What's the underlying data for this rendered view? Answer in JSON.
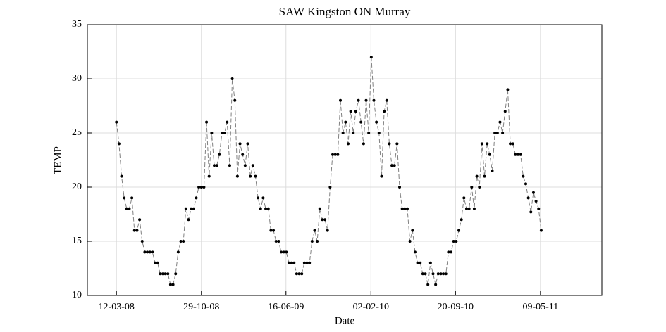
{
  "chart_data": {
    "type": "line",
    "title": "SAW Kingston ON Murray",
    "xlabel": "Date",
    "ylabel": "TEMP",
    "x": [
      "2008-03-12",
      "2008-03-19",
      "2008-03-26",
      "2008-04-02",
      "2008-04-09",
      "2008-04-16",
      "2008-04-23",
      "2008-04-30",
      "2008-05-07",
      "2008-05-14",
      "2008-05-21",
      "2008-05-28",
      "2008-06-04",
      "2008-06-11",
      "2008-06-18",
      "2008-06-25",
      "2008-07-02",
      "2008-07-09",
      "2008-07-16",
      "2008-07-23",
      "2008-07-30",
      "2008-08-06",
      "2008-08-13",
      "2008-08-20",
      "2008-08-27",
      "2008-09-03",
      "2008-09-10",
      "2008-09-17",
      "2008-09-24",
      "2008-10-01",
      "2008-10-08",
      "2008-10-15",
      "2008-10-22",
      "2008-10-29",
      "2008-11-05",
      "2008-11-12",
      "2008-11-19",
      "2008-11-26",
      "2008-12-03",
      "2008-12-10",
      "2008-12-17",
      "2008-12-24",
      "2008-12-31",
      "2009-01-07",
      "2009-01-14",
      "2009-01-21",
      "2009-01-28",
      "2009-02-04",
      "2009-02-11",
      "2009-02-18",
      "2009-02-25",
      "2009-03-04",
      "2009-03-11",
      "2009-03-18",
      "2009-03-25",
      "2009-04-01",
      "2009-04-08",
      "2009-04-15",
      "2009-04-22",
      "2009-04-29",
      "2009-05-06",
      "2009-05-13",
      "2009-05-20",
      "2009-05-27",
      "2009-06-03",
      "2009-06-10",
      "2009-06-17",
      "2009-06-24",
      "2009-07-01",
      "2009-07-08",
      "2009-07-15",
      "2009-07-22",
      "2009-07-29",
      "2009-08-05",
      "2009-08-12",
      "2009-08-19",
      "2009-08-26",
      "2009-09-02",
      "2009-09-09",
      "2009-09-16",
      "2009-09-23",
      "2009-09-30",
      "2009-10-07",
      "2009-10-14",
      "2009-10-21",
      "2009-10-28",
      "2009-11-04",
      "2009-11-11",
      "2009-11-18",
      "2009-11-25",
      "2009-12-02",
      "2009-12-09",
      "2009-12-16",
      "2009-12-23",
      "2009-12-30",
      "2010-01-06",
      "2010-01-13",
      "2010-01-20",
      "2010-01-27",
      "2010-02-03",
      "2010-02-10",
      "2010-02-17",
      "2010-02-24",
      "2010-03-03",
      "2010-03-10",
      "2010-03-17",
      "2010-03-24",
      "2010-03-31",
      "2010-04-07",
      "2010-04-14",
      "2010-04-21",
      "2010-04-28",
      "2010-05-05",
      "2010-05-12",
      "2010-05-19",
      "2010-05-26",
      "2010-06-02",
      "2010-06-09",
      "2010-06-16",
      "2010-06-23",
      "2010-06-30",
      "2010-07-07",
      "2010-07-14",
      "2010-07-21",
      "2010-07-28",
      "2010-08-04",
      "2010-08-11",
      "2010-08-18",
      "2010-08-25",
      "2010-09-01",
      "2010-09-08",
      "2010-09-15",
      "2010-09-22",
      "2010-09-29",
      "2010-10-06",
      "2010-10-13",
      "2010-10-20",
      "2010-10-27",
      "2010-11-03",
      "2010-11-10",
      "2010-11-17",
      "2010-11-24",
      "2010-12-01",
      "2010-12-08",
      "2010-12-15",
      "2010-12-22",
      "2010-12-29",
      "2011-01-05",
      "2011-01-12",
      "2011-01-19",
      "2011-01-26",
      "2011-02-02",
      "2011-02-09",
      "2011-02-16",
      "2011-02-23",
      "2011-03-02",
      "2011-03-09",
      "2011-03-16",
      "2011-03-23",
      "2011-03-30",
      "2011-04-06",
      "2011-04-13",
      "2011-04-20",
      "2011-04-27",
      "2011-05-04",
      "2011-05-11"
    ],
    "values": [
      26,
      24,
      21,
      19,
      18,
      18,
      19,
      16,
      16,
      17,
      15,
      14,
      14,
      14,
      14,
      13,
      13,
      12,
      12,
      12,
      12,
      11,
      11,
      12,
      14,
      15,
      15,
      18,
      17,
      18,
      18,
      19,
      20,
      20,
      20,
      26,
      21,
      25,
      22,
      22,
      23,
      25,
      25,
      26,
      22,
      30,
      28,
      21,
      24,
      23,
      22,
      24,
      21,
      22,
      21,
      19,
      18,
      19,
      18,
      18,
      16,
      16,
      15,
      15,
      14,
      14,
      14,
      13,
      13,
      13,
      12,
      12,
      12,
      13,
      13,
      13,
      15,
      16,
      15,
      18,
      17,
      17,
      16,
      20,
      23,
      23,
      23,
      28,
      25,
      26,
      24,
      27,
      25,
      27,
      28,
      26,
      24,
      28,
      25,
      32,
      28,
      26,
      25,
      21,
      27,
      28,
      24,
      22,
      22,
      24,
      20,
      18,
      18,
      18,
      15,
      16,
      14,
      13,
      13,
      12,
      12,
      11,
      13,
      12,
      11,
      12,
      12,
      12,
      12,
      14,
      14,
      15,
      15,
      16,
      17,
      19,
      18,
      18,
      20,
      18,
      21,
      20,
      24,
      21,
      24,
      23,
      21.5,
      25,
      25,
      26,
      25,
      27,
      29,
      24,
      24,
      23,
      23,
      23,
      21,
      20.3,
      19,
      17.7,
      19.5,
      18.7,
      18,
      16
    ],
    "color": "#808080",
    "marker_color": "#000000",
    "xlim": [
      "2007-12-24",
      "2011-10-23"
    ],
    "xticks": [
      {
        "value": "2008-03-12",
        "label": "12-03-08"
      },
      {
        "value": "2008-10-29",
        "label": "29-10-08"
      },
      {
        "value": "2009-06-16",
        "label": "16-06-09"
      },
      {
        "value": "2010-02-02",
        "label": "02-02-10"
      },
      {
        "value": "2010-09-20",
        "label": "20-09-10"
      },
      {
        "value": "2011-05-09",
        "label": "09-05-11"
      }
    ],
    "ylim": [
      10,
      35
    ],
    "yticks": [
      10,
      15,
      20,
      25,
      30,
      35
    ],
    "grid": true
  }
}
